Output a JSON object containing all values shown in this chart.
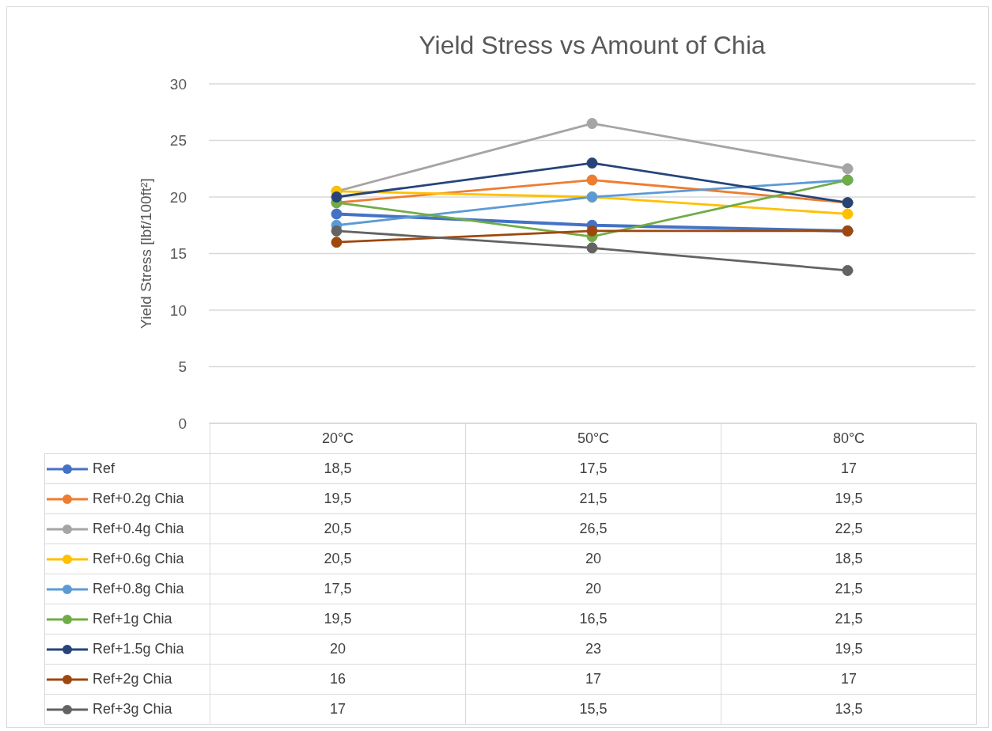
{
  "chart_data": {
    "type": "line",
    "title": "Yield Stress vs Amount of Chia",
    "ylabel": "Yield Stress [lbf/100ft²]",
    "categories": [
      "20°C",
      "50°C",
      "80°C"
    ],
    "ylim": [
      0,
      30
    ],
    "yticks": [
      0,
      5,
      10,
      15,
      20,
      25,
      30
    ],
    "grid": "y",
    "marker": "circle",
    "line_style": "solid",
    "legend": "bottom",
    "series": [
      {
        "name": "Ref",
        "color": "#4472c4",
        "values": [
          18.5,
          17.5,
          17
        ],
        "value_labels": [
          "18,5",
          "17,5",
          "17"
        ]
      },
      {
        "name": "Ref+0.2g Chia",
        "color": "#ed7d31",
        "values": [
          19.5,
          21.5,
          19.5
        ],
        "value_labels": [
          "19,5",
          "21,5",
          "19,5"
        ]
      },
      {
        "name": "Ref+0.4g Chia",
        "color": "#a5a5a5",
        "values": [
          20.5,
          26.5,
          22.5
        ],
        "value_labels": [
          "20,5",
          "26,5",
          "22,5"
        ]
      },
      {
        "name": "Ref+0.6g Chia",
        "color": "#ffc000",
        "values": [
          20.5,
          20,
          18.5
        ],
        "value_labels": [
          "20,5",
          "20",
          "18,5"
        ]
      },
      {
        "name": "Ref+0.8g Chia",
        "color": "#5b9bd5",
        "values": [
          17.5,
          20,
          21.5
        ],
        "value_labels": [
          "17,5",
          "20",
          "21,5"
        ]
      },
      {
        "name": "Ref+1g Chia",
        "color": "#70ad47",
        "values": [
          19.5,
          16.5,
          21.5
        ],
        "value_labels": [
          "19,5",
          "16,5",
          "21,5"
        ]
      },
      {
        "name": "Ref+1.5g Chia",
        "color": "#264478",
        "values": [
          20,
          23,
          19.5
        ],
        "value_labels": [
          "20",
          "23",
          "19,5"
        ]
      },
      {
        "name": "Ref+2g Chia",
        "color": "#9e480e",
        "values": [
          16,
          17,
          17
        ],
        "value_labels": [
          "16",
          "17",
          "17"
        ]
      },
      {
        "name": "Ref+3g Chia",
        "color": "#636363",
        "values": [
          17,
          15.5,
          13.5
        ],
        "value_labels": [
          "17",
          "15,5",
          "13,5"
        ]
      }
    ]
  }
}
